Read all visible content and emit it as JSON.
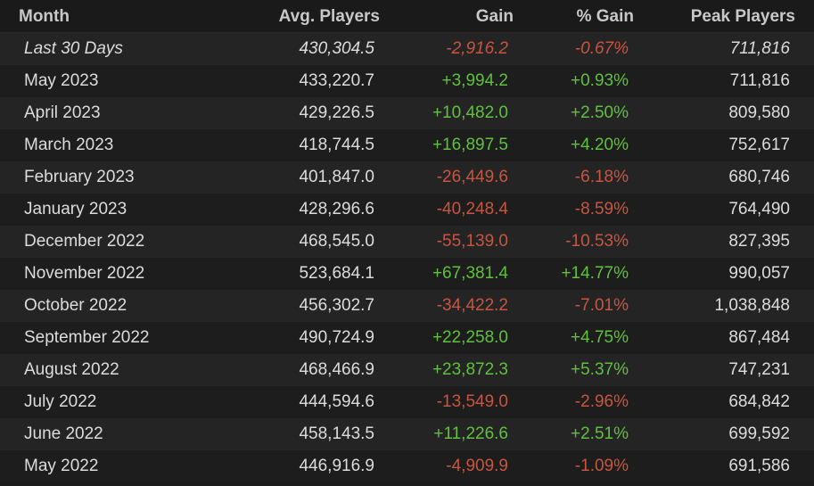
{
  "header": {
    "columns": [
      "Month",
      "Avg. Players",
      "Gain",
      "% Gain",
      "Peak Players"
    ]
  },
  "table": {
    "rows": [
      [
        "Last 30 Days",
        "430,304.5",
        "-2,916.2",
        "-0.67%",
        "711,816"
      ],
      [
        "May 2023",
        "433,220.7",
        "+3,994.2",
        "+0.93%",
        "711,816"
      ],
      [
        "April 2023",
        "429,226.5",
        "+10,482.0",
        "+2.50%",
        "809,580"
      ],
      [
        "March 2023",
        "418,744.5",
        "+16,897.5",
        "+4.20%",
        "752,617"
      ],
      [
        "February 2023",
        "401,847.0",
        "-26,449.6",
        "-6.18%",
        "680,746"
      ],
      [
        "January 2023",
        "428,296.6",
        "-40,248.4",
        "-8.59%",
        "764,490"
      ],
      [
        "December 2022",
        "468,545.0",
        "-55,139.0",
        "-10.53%",
        "827,395"
      ],
      [
        "November 2022",
        "523,684.1",
        "+67,381.4",
        "+14.77%",
        "990,057"
      ],
      [
        "October 2022",
        "456,302.7",
        "-34,422.2",
        "-7.01%",
        "1,038,848"
      ],
      [
        "September 2022",
        "490,724.9",
        "+22,258.0",
        "+4.75%",
        "867,484"
      ],
      [
        "August 2022",
        "468,466.9",
        "+23,872.3",
        "+5.37%",
        "747,231"
      ],
      [
        "July 2022",
        "444,594.6",
        "-13,549.0",
        "-2.96%",
        "684,842"
      ],
      [
        "June 2022",
        "458,143.5",
        "+11,226.6",
        "+2.51%",
        "699,592"
      ],
      [
        "May 2022",
        "446,916.9",
        "-4,909.9",
        "-1.09%",
        "691,586"
      ]
    ]
  }
}
